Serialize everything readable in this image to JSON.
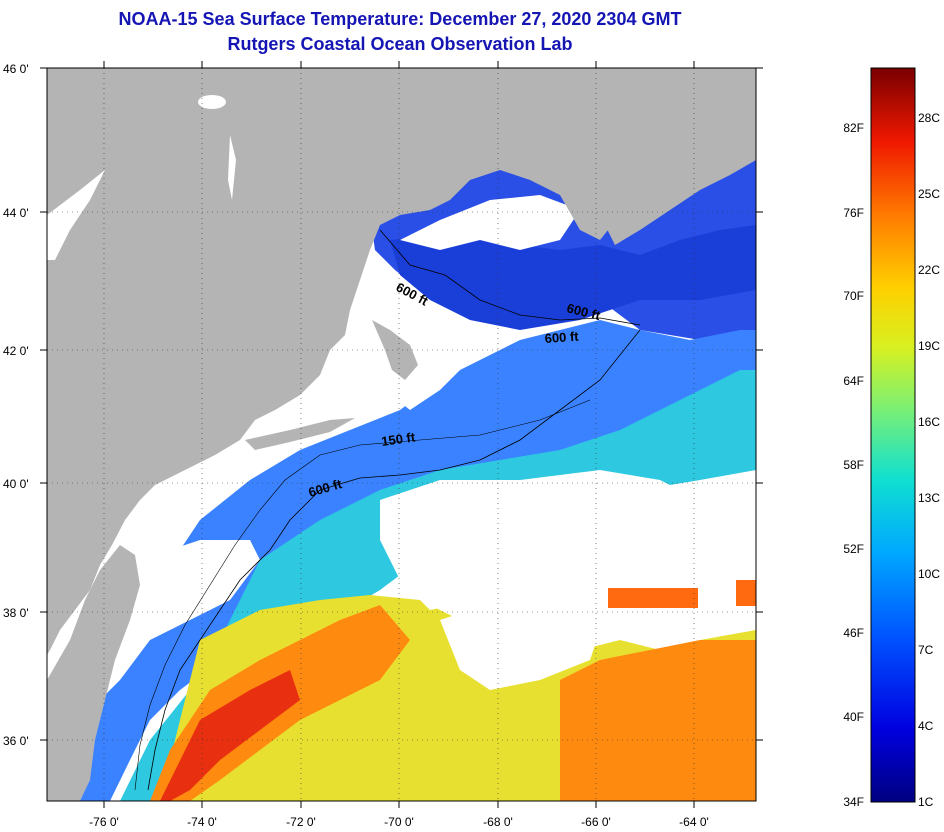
{
  "title": {
    "line1": "NOAA-15 Sea Surface Temperature:  December 27, 2020 2304 GMT",
    "line2": "Rutgers Coastal Ocean Observation Lab"
  },
  "axes": {
    "lat_labels": [
      "46 0'",
      "44 0'",
      "42 0'",
      "40 0'",
      "38 0'",
      "36 0'"
    ],
    "lon_labels": [
      "-76 0'",
      "-74 0'",
      "-72 0'",
      "-70 0'",
      "-68 0'",
      "-66 0'",
      "-64 0'"
    ]
  },
  "contours": [
    "600 ft",
    "600 ft",
    "600 ft",
    "150 ft",
    "600 ft"
  ],
  "colorbar": {
    "fahrenheit": [
      "82F",
      "76F",
      "70F",
      "64F",
      "58F",
      "52F",
      "46F",
      "40F",
      "34F"
    ],
    "celsius": [
      "28C",
      "25C",
      "22C",
      "19C",
      "16C",
      "13C",
      "10C",
      "7C",
      "4C",
      "1C"
    ]
  },
  "colors": {
    "land": "#b4b4b4",
    "cloud": "#ffffff",
    "title": "#1515b4"
  }
}
